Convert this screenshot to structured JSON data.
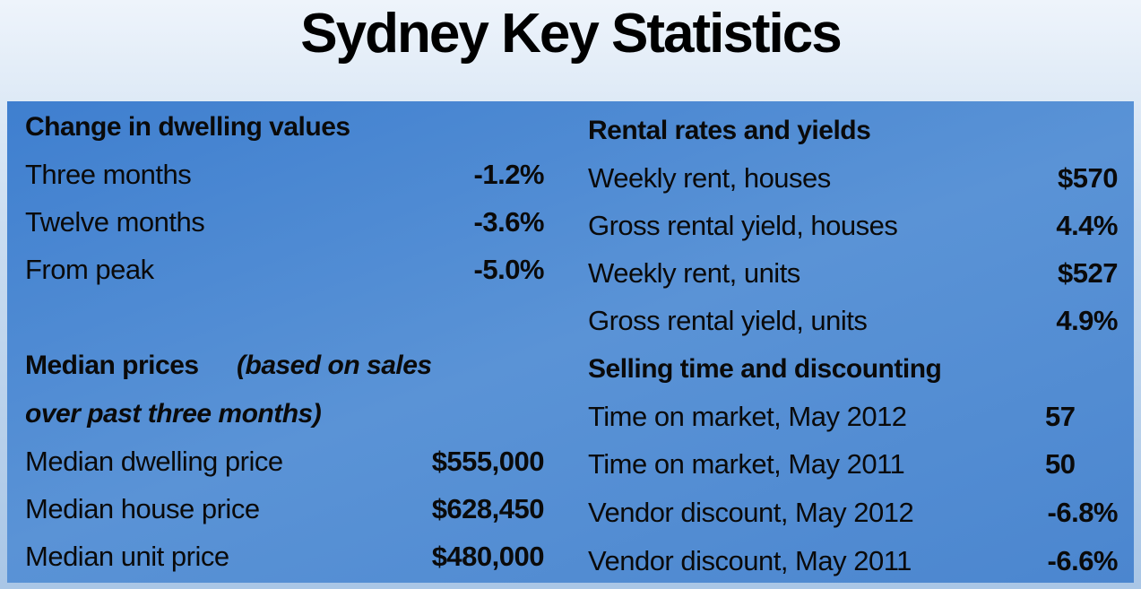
{
  "title": "Sydney Key Statistics",
  "left": {
    "sections": [
      {
        "heading": "Change in dwelling values",
        "rows": [
          [
            "Three months",
            "-1.2%"
          ],
          [
            "Twelve months",
            "-3.6%"
          ],
          [
            "From peak",
            "-5.0%"
          ]
        ]
      },
      {
        "heading": "Median prices",
        "heading_note_line1": "(based on sales",
        "heading_note_line2": "over past three months)",
        "rows": [
          [
            "Median dwelling price",
            "$555,000"
          ],
          [
            "Median house price",
            "$628,450"
          ],
          [
            "Median unit price",
            "$480,000"
          ]
        ]
      }
    ]
  },
  "right": {
    "sections": [
      {
        "heading": "Rental rates and yields",
        "rows": [
          [
            "Weekly rent, houses",
            "$570"
          ],
          [
            "Gross rental yield, houses",
            "4.4%"
          ],
          [
            "Weekly rent, units",
            "$527"
          ],
          [
            "Gross rental yield, units",
            "4.9%"
          ]
        ]
      },
      {
        "heading": "Selling time and discounting",
        "rows": [
          [
            "Time on market, May 2012",
            "57"
          ],
          [
            "Time on market, May 2011",
            "50"
          ],
          [
            "Vendor discount, May 2012",
            "-6.8%"
          ],
          [
            "Vendor discount, May 2011",
            "-6.6%"
          ]
        ]
      }
    ]
  }
}
